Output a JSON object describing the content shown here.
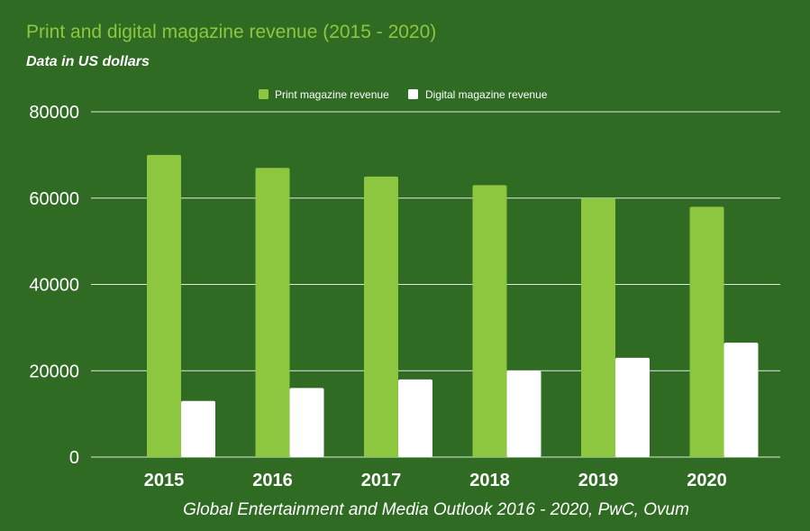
{
  "title": "Print and digital magazine revenue (2015 - 2020)",
  "subtitle": "Data in US dollars",
  "colors": {
    "background": "#306b24",
    "print": "#8dc63f",
    "digital": "#ffffff",
    "title": "#8dc63f",
    "grid": "#ffffff"
  },
  "chart_data": {
    "type": "bar",
    "categories": [
      "2015",
      "2016",
      "2017",
      "2018",
      "2019",
      "2020"
    ],
    "series": [
      {
        "name": "Print magazine revenue",
        "values": [
          70000,
          67000,
          65000,
          63000,
          60000,
          58000
        ]
      },
      {
        "name": "Digital magazine revenue",
        "values": [
          13000,
          16000,
          18000,
          20000,
          23000,
          26500
        ]
      }
    ],
    "ylim": [
      0,
      80000
    ],
    "yticks": [
      "0",
      "20000",
      "40000",
      "60000",
      "80000"
    ],
    "grid": true,
    "legend_position": "top-center",
    "source": "Global Entertainment and Media Outlook 2016 - 2020, PwC, Ovum"
  }
}
